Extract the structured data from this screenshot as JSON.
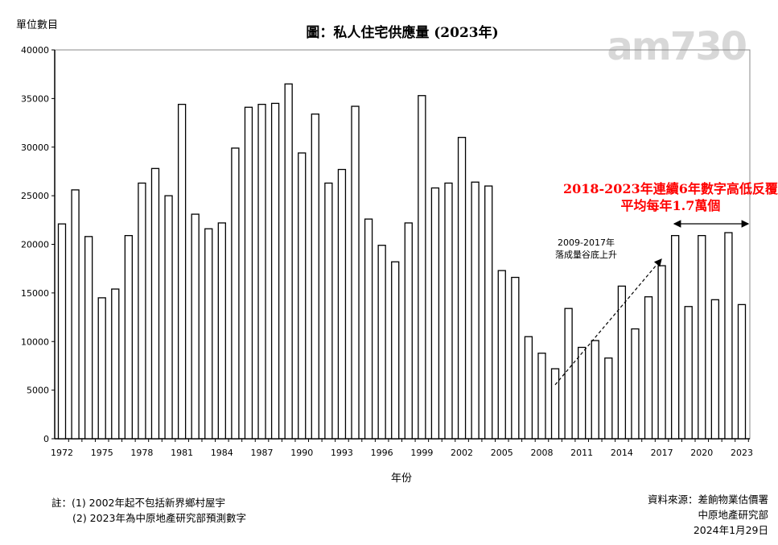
{
  "chart_data": {
    "type": "bar",
    "title": "圖：私人住宅供應量 (2023年)",
    "ylabel": "單位數目",
    "xlabel": "年份",
    "ylim": [
      0,
      40000
    ],
    "yticks": [
      0,
      5000,
      10000,
      15000,
      20000,
      25000,
      30000,
      35000,
      40000
    ],
    "xtick_labels": [
      "1972",
      "1975",
      "1978",
      "1981",
      "1984",
      "1987",
      "1990",
      "1993",
      "1996",
      "1999",
      "2002",
      "2005",
      "2008",
      "2011",
      "2014",
      "2017",
      "2020",
      "2023"
    ],
    "categories": [
      1972,
      1973,
      1974,
      1975,
      1976,
      1977,
      1978,
      1979,
      1980,
      1981,
      1982,
      1983,
      1984,
      1985,
      1986,
      1987,
      1988,
      1989,
      1990,
      1991,
      1992,
      1993,
      1994,
      1995,
      1996,
      1997,
      1998,
      1999,
      2000,
      2001,
      2002,
      2003,
      2004,
      2005,
      2006,
      2007,
      2008,
      2009,
      2010,
      2011,
      2012,
      2013,
      2014,
      2015,
      2016,
      2017,
      2018,
      2019,
      2020,
      2021,
      2022,
      2023
    ],
    "values": [
      22100,
      25600,
      20800,
      14500,
      15400,
      20900,
      26300,
      27800,
      25000,
      34400,
      23100,
      21600,
      22200,
      29900,
      34100,
      34400,
      34500,
      36500,
      29400,
      33400,
      26300,
      27700,
      34200,
      22600,
      19900,
      18200,
      22200,
      35300,
      25800,
      26300,
      31000,
      26400,
      26000,
      17300,
      16600,
      10500,
      8800,
      7200,
      13400,
      9400,
      10100,
      8300,
      15700,
      11300,
      14600,
      17800,
      20900,
      13600,
      20900,
      14300,
      21200,
      13800
    ],
    "grid": false,
    "annotations": {
      "red_line1": "2018-2023年連續6年數字高低反覆",
      "red_line2": "平均每年1.7萬個",
      "trend_line1": "2009-2017年",
      "trend_line2": "落成量谷底上升"
    },
    "colors": {
      "bar_fill": "#ffffff",
      "bar_stroke": "#000000",
      "highlight": "#ff0000"
    }
  },
  "notes": {
    "line1": "註：(1) 2002年起不包括新界鄉村屋宇",
    "line2": "(2) 2023年為中原地產研究部預測數字"
  },
  "source": {
    "line1": "資料來源：差餉物業估價署",
    "line2": "中原地產研究部",
    "date": "2024年1月29日"
  },
  "watermark": "am730"
}
